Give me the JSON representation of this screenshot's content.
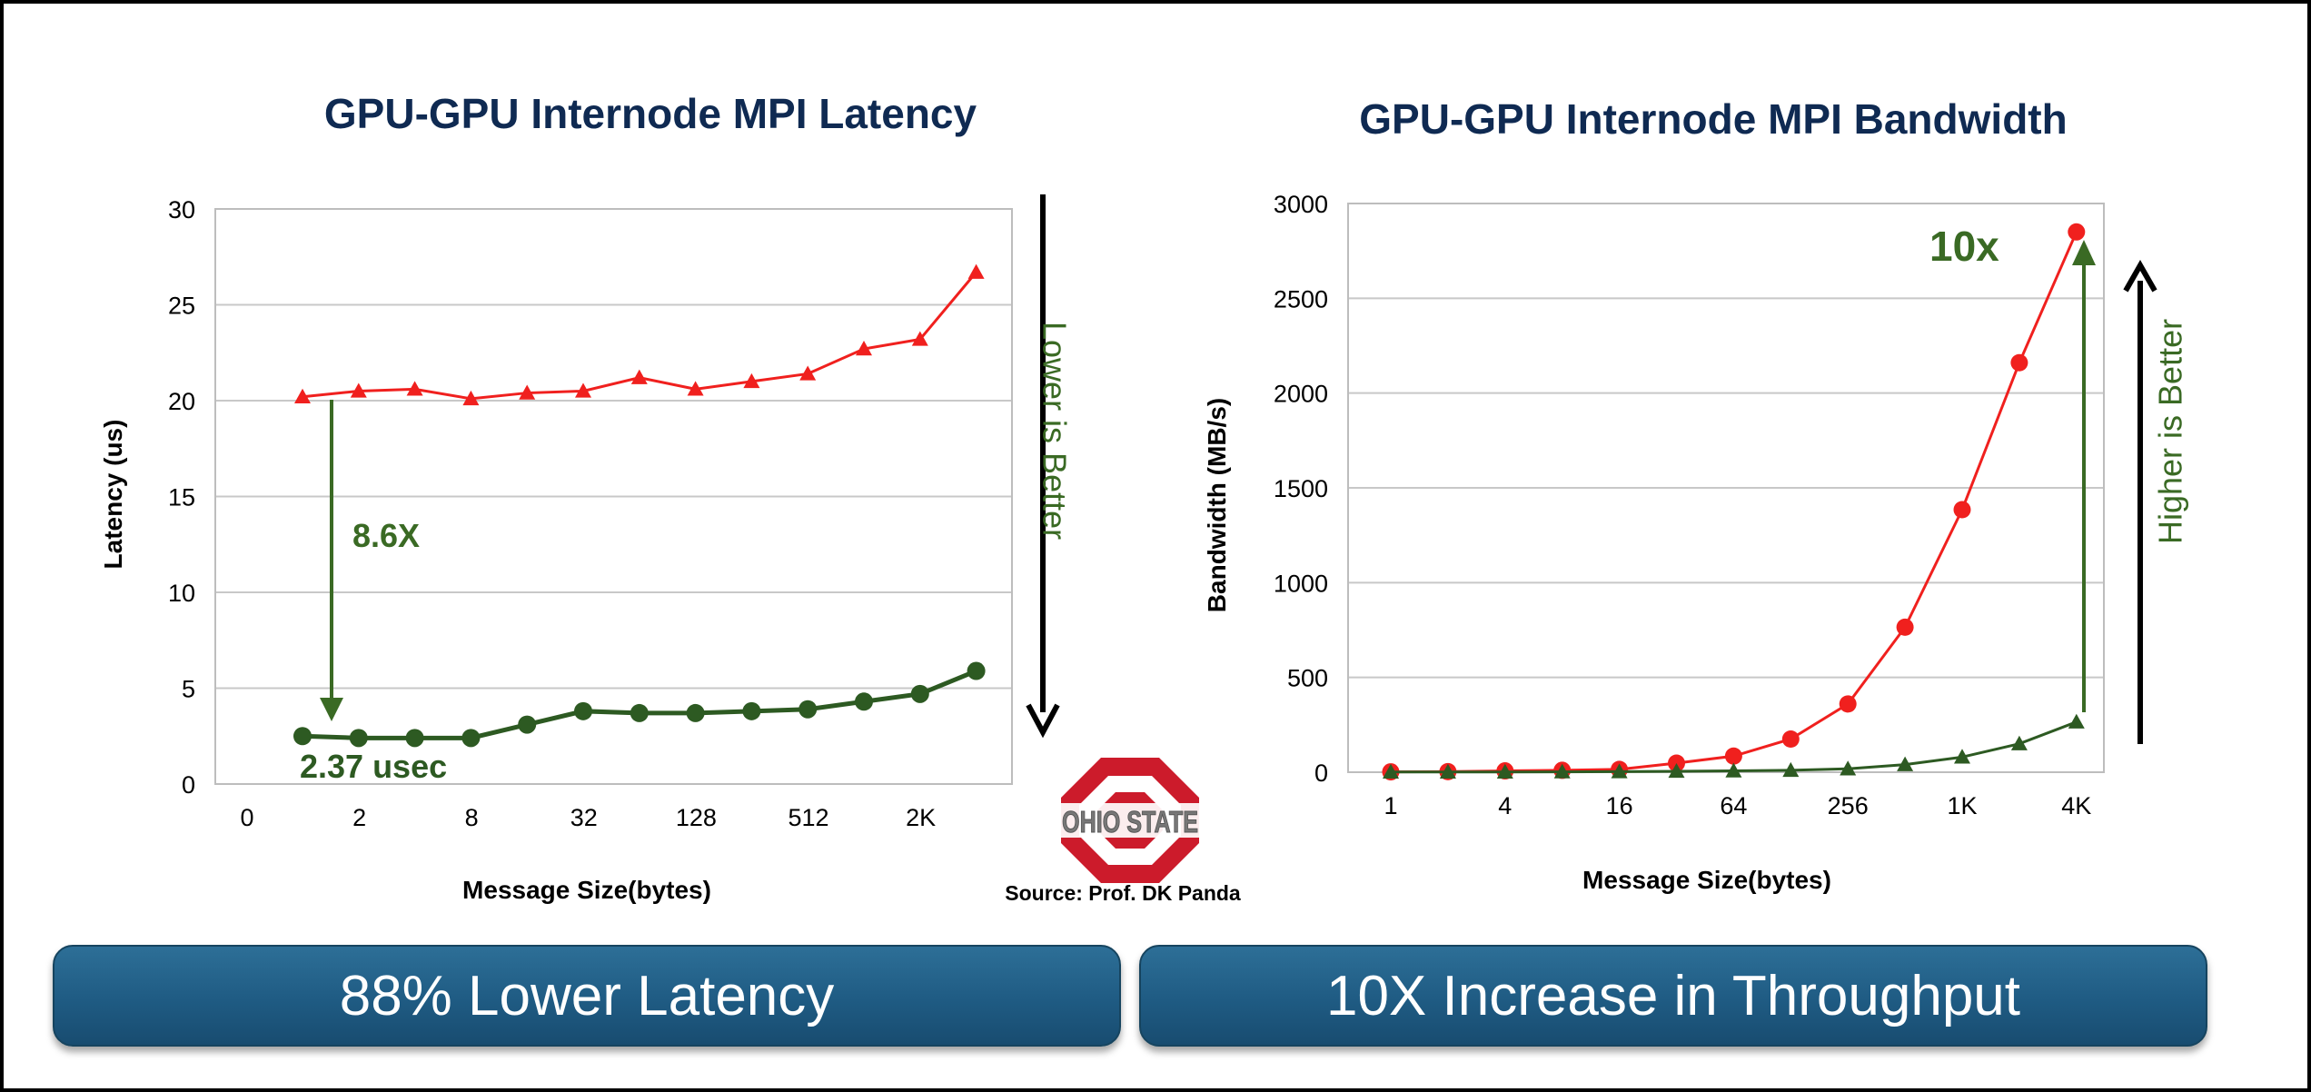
{
  "colors": {
    "title": "#0f2a52",
    "before_series": "#f0201e",
    "after_series": "#2d5a22",
    "annotation_green": "#3a6a24",
    "grid": "#c8c8c8",
    "banner": "#1f5b83",
    "ohio_red": "#cc1b2b",
    "ohio_gray": "#777777"
  },
  "source_note": "Source: Prof. DK Panda",
  "logo_text": "OHIO STATE",
  "chart_data": [
    {
      "type": "line",
      "title": "GPU-GPU Internode MPI Latency",
      "xlabel": "Message Size(bytes)",
      "ylabel": "Latency (us)",
      "ylim": [
        0,
        30
      ],
      "yticks": [
        "0",
        "5",
        "10",
        "15",
        "20",
        "25",
        "30"
      ],
      "xticks": [
        "0",
        "2",
        "8",
        "32",
        "128",
        "512",
        "2K"
      ],
      "categories": [
        "1",
        "2",
        "4",
        "8",
        "16",
        "32",
        "64",
        "128",
        "256",
        "512",
        "1K",
        "2K",
        "4K"
      ],
      "series": [
        {
          "name": "before",
          "marker": "triangle",
          "values": [
            20.2,
            20.5,
            20.6,
            20.1,
            20.4,
            20.5,
            21.2,
            20.6,
            21.0,
            21.4,
            22.7,
            23.2,
            26.7
          ]
        },
        {
          "name": "after",
          "marker": "circle",
          "values": [
            2.5,
            2.4,
            2.4,
            2.4,
            3.1,
            3.8,
            3.7,
            3.7,
            3.8,
            3.9,
            4.3,
            4.7,
            5.9
          ]
        }
      ],
      "annotations": {
        "improvement": "8.6X",
        "low_value": "2.37 usec",
        "direction": "Lower is Better"
      },
      "banner": "88% Lower Latency"
    },
    {
      "type": "line",
      "title": "GPU-GPU Internode MPI Bandwidth",
      "xlabel": "Message Size(bytes)",
      "ylabel": "Bandwidth  (MB/s)",
      "ylim": [
        0,
        3000
      ],
      "yticks": [
        "0",
        "500",
        "1000",
        "1500",
        "2000",
        "2500",
        "3000"
      ],
      "xticks": [
        "1",
        "4",
        "16",
        "64",
        "256",
        "1K",
        "4K"
      ],
      "categories": [
        "1",
        "2",
        "4",
        "8",
        "16",
        "32",
        "64",
        "128",
        "256",
        "512",
        "1K",
        "2K",
        "4K"
      ],
      "series": [
        {
          "name": "after",
          "marker": "circle",
          "values": [
            2,
            3,
            7,
            10,
            15,
            48,
            85,
            175,
            360,
            765,
            1385,
            2160,
            2850
          ]
        },
        {
          "name": "before",
          "marker": "triangle",
          "values": [
            1,
            1,
            1,
            2,
            3,
            5,
            7,
            10,
            18,
            40,
            80,
            150,
            265
          ]
        }
      ],
      "annotations": {
        "improvement": "10x",
        "direction": "Higher is Better"
      },
      "banner": "10X Increase in Throughput"
    }
  ]
}
